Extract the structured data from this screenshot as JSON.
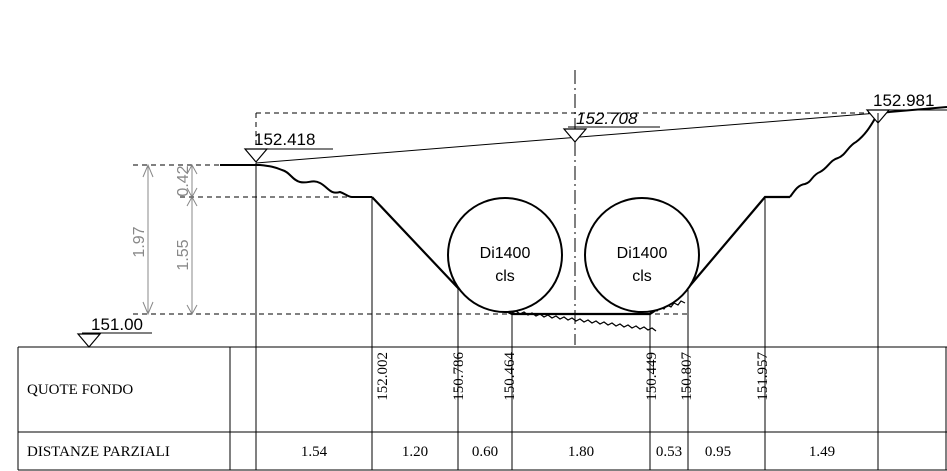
{
  "elevations": {
    "left_bank": "152.418",
    "axis": "152.708",
    "right_bank": "152.981",
    "datum": "151.00"
  },
  "dimensions": {
    "total": "1.97",
    "top": "0.42",
    "bottom": "1.55"
  },
  "pipes": [
    {
      "line1": "Di1400",
      "line2": "cls"
    },
    {
      "line1": "Di1400",
      "line2": "cls"
    }
  ],
  "table": {
    "quote_label": "QUOTE FONDO",
    "distanze_label": "DISTANZE PARZIALI",
    "quote_values": [
      "152.002",
      "150.786",
      "150.464",
      "150.449",
      "150.807",
      "151.957"
    ],
    "distanze_values": [
      "1.54",
      "1.20",
      "0.60",
      "1.80",
      "0.53",
      "0.95",
      "1.49"
    ]
  }
}
